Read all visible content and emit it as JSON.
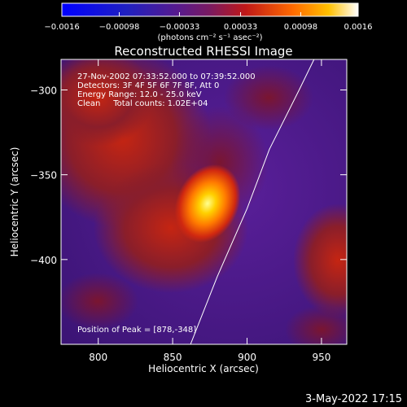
{
  "chart_data": {
    "type": "heatmap",
    "title": "Reconstructed RHESSI Image",
    "xlabel": "Heliocentric X (arcsec)",
    "ylabel": "Heliocentric Y (arcsec)",
    "xlim": [
      775,
      967
    ],
    "ylim": [
      -450,
      -282
    ],
    "x_ticks": [
      800,
      850,
      900,
      950
    ],
    "y_ticks": [
      -300,
      -350,
      -400
    ],
    "colorbar": {
      "range": [
        -0.0016,
        0.0016
      ],
      "tick_values": [
        -0.0016,
        -0.00098,
        -0.00033,
        0.00033,
        0.00098,
        0.0016
      ],
      "tick_labels": [
        "−0.0016",
        "−0.00098",
        "−0.00033",
        "0.00033",
        "0.00098",
        "0.0016"
      ],
      "unit_label": "(photons cm⁻² s⁻¹ asec⁻²)"
    },
    "annotations": [
      "27-Nov-2002 07:33:52.000 to 07:39:52.000",
      "Detectors: 3F 4F 5F 6F 7F 8F, Att 0",
      "Energy Range: 12.0 - 25.0 keV",
      "Clean     Total counts: 1.02E+04"
    ],
    "peak_label": "Position of Peak = [878,-348]",
    "peak": {
      "x": 878,
      "y": -348
    },
    "limb_curve": [
      [
        862,
        -450
      ],
      [
        880,
        -410
      ],
      [
        900,
        -370
      ],
      [
        915,
        -335
      ],
      [
        935,
        -300
      ],
      [
        945,
        -282
      ]
    ]
  },
  "footer": {
    "date": "3-May-2022 17:15"
  }
}
